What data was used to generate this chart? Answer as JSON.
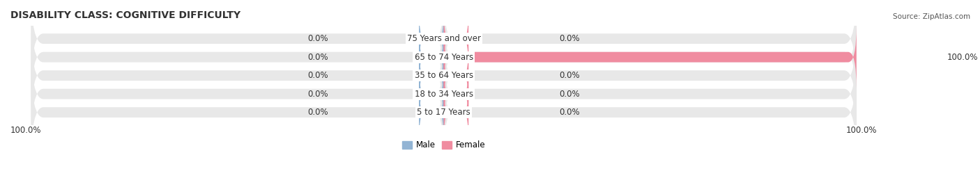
{
  "title": "DISABILITY CLASS: COGNITIVE DIFFICULTY",
  "source_text": "Source: ZipAtlas.com",
  "categories": [
    "5 to 17 Years",
    "18 to 34 Years",
    "35 to 64 Years",
    "65 to 74 Years",
    "75 Years and over"
  ],
  "male_values": [
    0.0,
    0.0,
    0.0,
    0.0,
    0.0
  ],
  "female_values": [
    0.0,
    0.0,
    0.0,
    100.0,
    0.0
  ],
  "male_left_labels": [
    "0.0%",
    "0.0%",
    "0.0%",
    "0.0%",
    "0.0%"
  ],
  "female_right_labels": [
    "0.0%",
    "0.0%",
    "0.0%",
    "100.0%",
    "0.0%"
  ],
  "x_left_label": "100.0%",
  "x_right_label": "100.0%",
  "male_color": "#92b4d4",
  "female_color": "#f08ca0",
  "bar_bg_color": "#e8e8e8",
  "bar_height": 0.55,
  "title_fontsize": 10,
  "label_fontsize": 8.5,
  "tick_fontsize": 8.5,
  "background_color": "#ffffff",
  "max_value": 100.0
}
